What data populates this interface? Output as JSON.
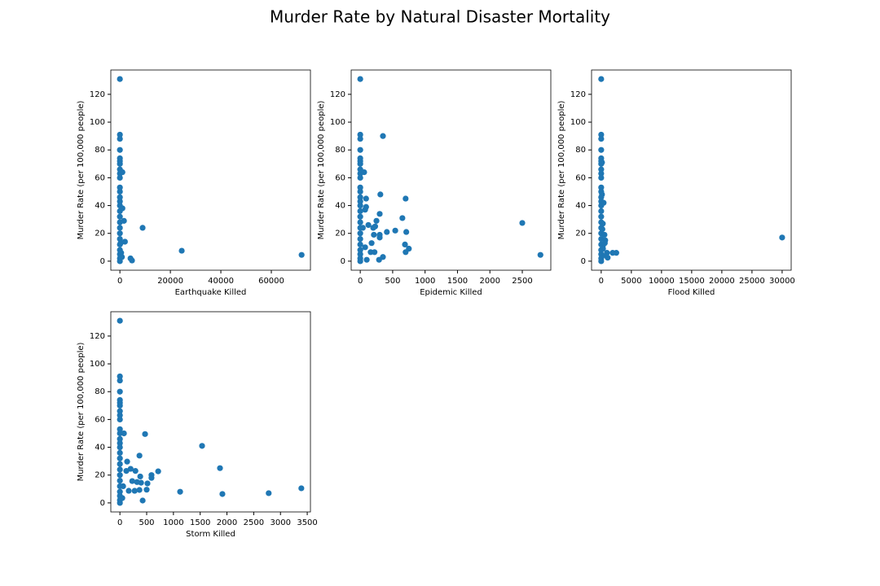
{
  "title": "Murder Rate by Natural Disaster Mortality",
  "chart_data": [
    {
      "type": "scatter",
      "xlabel": "Earthquake Killed",
      "ylabel": "Murder Rate (per 100,000 people)",
      "color": "#1f77b4",
      "x": [
        0,
        0,
        0,
        0,
        0,
        0,
        0,
        0,
        0,
        0,
        0,
        0,
        0,
        0,
        0,
        0,
        0,
        0,
        0,
        0,
        0,
        0,
        0,
        0,
        0,
        0,
        1000,
        1600,
        1000,
        2000,
        9000,
        24500,
        72000,
        4200,
        4800,
        300,
        500,
        800
      ],
      "values": [
        131,
        91,
        88,
        80,
        74,
        72,
        70,
        66,
        63,
        60,
        53,
        50,
        46,
        43,
        40,
        36,
        32,
        28,
        24,
        20,
        16,
        12,
        8,
        5,
        2,
        0,
        64,
        29,
        38,
        14,
        24,
        7.5,
        4.5,
        2,
        0.5,
        13,
        6,
        3
      ],
      "xlim": [
        -3600,
        75500
      ],
      "xticks": [
        0,
        20000,
        40000,
        60000
      ],
      "ylim": [
        -6.5,
        137.5
      ],
      "yticks": [
        0,
        20,
        40,
        60,
        80,
        100,
        120
      ]
    },
    {
      "type": "scatter",
      "xlabel": "Epidemic Killed",
      "ylabel": "Murder Rate (per 100,000 people)",
      "color": "#1f77b4",
      "x": [
        0,
        0,
        0,
        0,
        0,
        0,
        0,
        0,
        0,
        0,
        0,
        0,
        0,
        0,
        0,
        0,
        0,
        0,
        0,
        0,
        0,
        0,
        0,
        0,
        0,
        0,
        350,
        310,
        700,
        300,
        650,
        2500,
        2780,
        540,
        410,
        710,
        60,
        90,
        250,
        210,
        175,
        690,
        750,
        700,
        350,
        290,
        160,
        220,
        300,
        300,
        200,
        125,
        230,
        75,
        90,
        40,
        100,
        75
      ],
      "values": [
        131,
        91,
        88,
        80,
        74,
        72,
        70,
        66,
        63,
        60,
        53,
        50,
        46,
        43,
        40,
        36,
        32,
        28,
        24,
        20,
        16,
        12,
        8,
        5,
        2,
        0,
        90,
        48,
        45,
        34,
        31,
        27.5,
        4.5,
        22,
        21,
        21,
        64,
        45,
        29,
        19,
        13,
        12,
        9,
        6.5,
        3,
        1,
        6.5,
        6.5,
        17,
        19,
        24,
        26,
        25,
        37,
        39,
        24,
        1,
        10
      ],
      "xlim": [
        -140,
        2940
      ],
      "xticks": [
        0,
        500,
        1000,
        1500,
        2000,
        2500
      ],
      "ylim": [
        -6.5,
        137.5
      ],
      "yticks": [
        0,
        20,
        40,
        60,
        80,
        100,
        120
      ]
    },
    {
      "type": "scatter",
      "xlabel": "Flood Killed",
      "ylabel": "Murder Rate (per 100,000 people)",
      "color": "#1f77b4",
      "x": [
        0,
        0,
        0,
        0,
        0,
        0,
        0,
        0,
        0,
        0,
        0,
        0,
        0,
        0,
        0,
        0,
        0,
        0,
        0,
        0,
        0,
        0,
        0,
        0,
        0,
        0,
        30000,
        2500,
        1900,
        950,
        540,
        670,
        1070,
        270,
        400,
        270,
        130,
        130,
        300,
        200,
        800,
        600
      ],
      "values": [
        131,
        91,
        88,
        80,
        74,
        72,
        70,
        66,
        63,
        60,
        53,
        50,
        46,
        43,
        40,
        36,
        32,
        28,
        24,
        20,
        16,
        12,
        8,
        5,
        2,
        0,
        17,
        6,
        6,
        6,
        19,
        15,
        2.5,
        11,
        42,
        27,
        48,
        71,
        9,
        23,
        4,
        13
      ],
      "xlim": [
        -1600,
        31500
      ],
      "xticks": [
        0,
        5000,
        10000,
        15000,
        20000,
        25000,
        30000
      ],
      "ylim": [
        -6.5,
        137.5
      ],
      "yticks": [
        0,
        20,
        40,
        60,
        80,
        100,
        120
      ]
    },
    {
      "type": "scatter",
      "xlabel": "Storm Killed",
      "ylabel": "Murder Rate (per 100,000 people)",
      "color": "#1f77b4",
      "x": [
        0,
        0,
        0,
        0,
        0,
        0,
        0,
        0,
        0,
        0,
        0,
        0,
        0,
        0,
        0,
        0,
        0,
        0,
        0,
        0,
        0,
        0,
        0,
        0,
        0,
        0,
        470,
        1535,
        365,
        75,
        1870,
        715,
        590,
        590,
        3390,
        2780,
        1915,
        1125,
        500,
        425,
        395,
        515,
        230,
        135,
        200,
        290,
        120,
        275,
        365,
        165,
        45,
        380,
        320,
        60
      ],
      "values": [
        131,
        91,
        88,
        80,
        74,
        72,
        70,
        66,
        63,
        60,
        53,
        50,
        46,
        43,
        40,
        36,
        32,
        28,
        24,
        20,
        16,
        12,
        8,
        5,
        2,
        0,
        49.5,
        41,
        34,
        50,
        25,
        22.7,
        20,
        18,
        10.5,
        7,
        6.4,
        8,
        9.5,
        1.7,
        14.5,
        14,
        15.7,
        29.7,
        24.5,
        23,
        23,
        8.7,
        9.3,
        8.7,
        3.5,
        19,
        15,
        12
      ],
      "xlim": [
        -170,
        3560
      ],
      "xticks": [
        0,
        500,
        1000,
        1500,
        2000,
        2500,
        3000,
        3500
      ],
      "ylim": [
        -6.5,
        137.5
      ],
      "yticks": [
        0,
        20,
        40,
        60,
        80,
        100,
        120
      ]
    }
  ]
}
